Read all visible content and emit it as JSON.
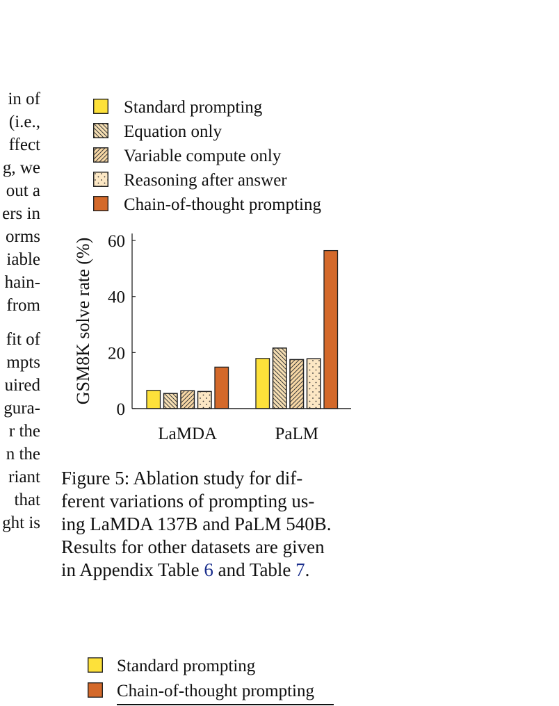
{
  "left_fragment_lines": [
    "in of",
    "(i.e.,",
    "ffect",
    "g, we",
    "out a",
    "ers in",
    "orms",
    "iable",
    "hain-",
    "from",
    "",
    "fit of",
    "mpts",
    "uired",
    "gura-",
    "r the",
    "n the",
    "riant",
    "that",
    "ght is"
  ],
  "legend": [
    {
      "label": "Standard prompting",
      "color": "#fde13a",
      "pattern": "solid"
    },
    {
      "label": "Equation only",
      "color": "#f6dfb3",
      "pattern": "back-hatch"
    },
    {
      "label": "Variable compute only",
      "color": "#f8d8a5",
      "pattern": "forward-hatch"
    },
    {
      "label": "Reasoning after answer",
      "color": "#fce7c4",
      "pattern": "dots"
    },
    {
      "label": "Chain-of-thought prompting",
      "color": "#d4692a",
      "pattern": "solid"
    }
  ],
  "chart_data": {
    "type": "bar",
    "categories": [
      "LaMDA",
      "PaLM"
    ],
    "series": [
      {
        "name": "Standard prompting",
        "values": [
          6.5,
          17.9
        ]
      },
      {
        "name": "Equation only",
        "values": [
          5.4,
          21.6
        ]
      },
      {
        "name": "Variable compute only",
        "values": [
          6.4,
          17.5
        ]
      },
      {
        "name": "Reasoning after answer",
        "values": [
          6.1,
          17.8
        ]
      },
      {
        "name": "Chain-of-thought prompting",
        "values": [
          14.8,
          56.4
        ]
      }
    ],
    "ylabel": "GSM8K solve rate (%)",
    "yticks": [
      0,
      20,
      40,
      60
    ],
    "ylim": [
      0,
      63
    ],
    "legend_position": "top"
  },
  "caption": {
    "lines": [
      "Figure 5:   Ablation study for dif-",
      "ferent variations of prompting us-",
      "ing LaMDA 137B and PaLM 540B.",
      "Results for other datasets are given"
    ],
    "last_prefix": "in Appendix Table ",
    "ref1": "6",
    "last_mid": " and Table ",
    "ref2": "7",
    "last_suffix": "."
  },
  "bottom_legend": [
    {
      "label": "Standard prompting",
      "color": "#fde13a"
    },
    {
      "label": "Chain-of-thought prompting",
      "color": "#d4692a"
    }
  ]
}
